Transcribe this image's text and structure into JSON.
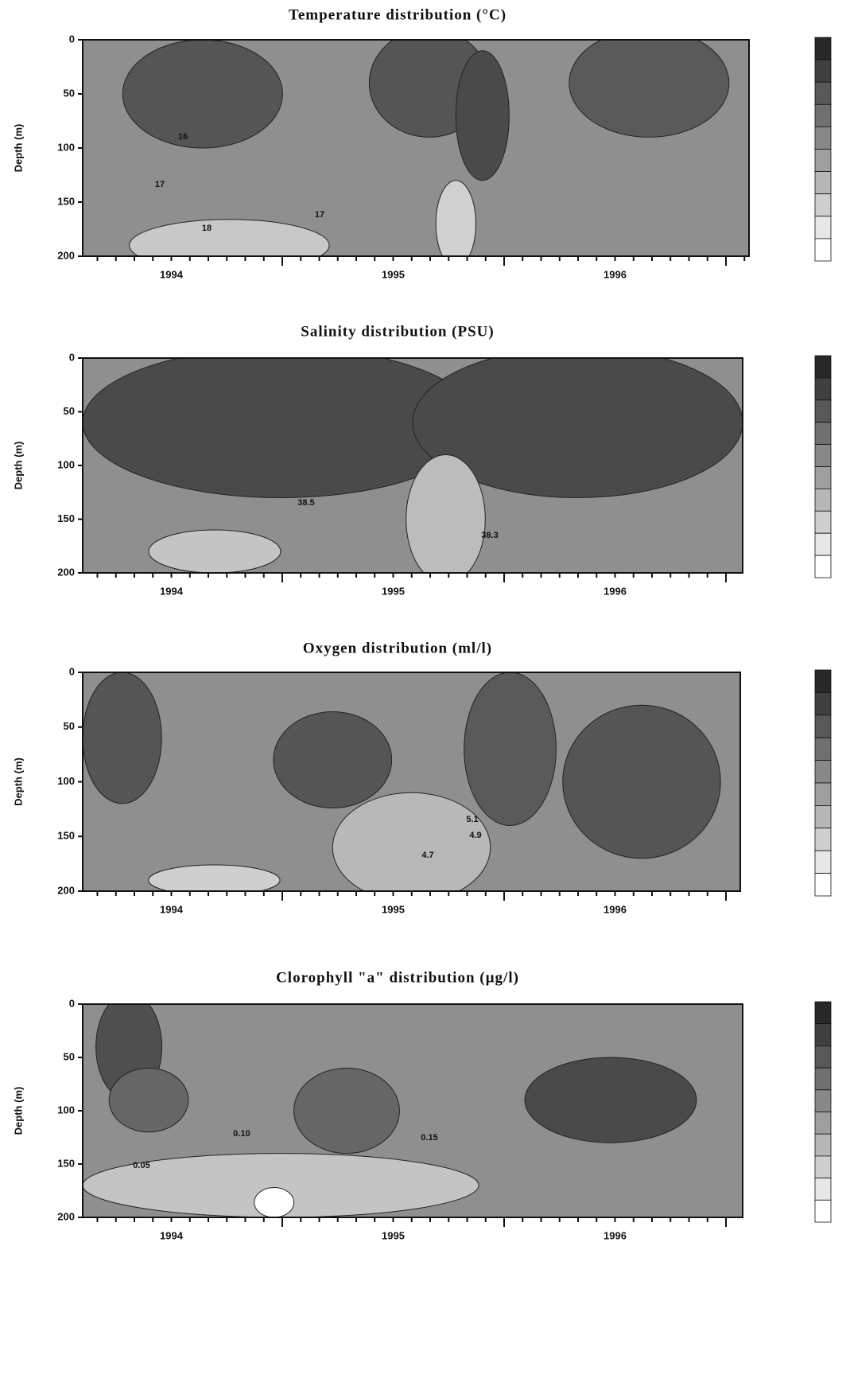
{
  "chart_data": [
    {
      "type": "contour",
      "title": "Temperature distribution (°C)",
      "y_label": "Depth (m)",
      "categories": [
        "1994",
        "1995",
        "1996"
      ],
      "ylim": [
        0,
        200
      ],
      "yticks": [
        0,
        50,
        100,
        150,
        200
      ],
      "contour_labels": [
        17,
        17,
        18,
        16
      ]
    },
    {
      "type": "contour",
      "title": "Salinity distribution (PSU)",
      "y_label": "Depth (m)",
      "categories": [
        "1994",
        "1995",
        "1996"
      ],
      "ylim": [
        0,
        200
      ],
      "yticks": [
        0,
        50,
        100,
        150,
        200
      ],
      "contour_labels": [
        38.5,
        38.3
      ]
    },
    {
      "type": "contour",
      "title": "Oxygen distribution (ml/l)",
      "y_label": "Depth (m)",
      "categories": [
        "1994",
        "1995",
        "1996"
      ],
      "ylim": [
        0,
        200
      ],
      "yticks": [
        0,
        50,
        100,
        150,
        200
      ],
      "contour_labels": [
        4.7,
        4.9,
        5.1
      ]
    },
    {
      "type": "contour",
      "title": "Clorophyll \"a\" distribution (µg/l)",
      "y_label": "Depth (m)",
      "categories": [
        "1994",
        "1995",
        "1996"
      ],
      "ylim": [
        0,
        200
      ],
      "yticks": [
        0,
        50,
        100,
        150,
        200
      ],
      "contour_labels": [
        0.1,
        0.05,
        0.15
      ],
      "contour_value_labels": [
        "0.10",
        "0.05",
        "0.15"
      ]
    }
  ]
}
